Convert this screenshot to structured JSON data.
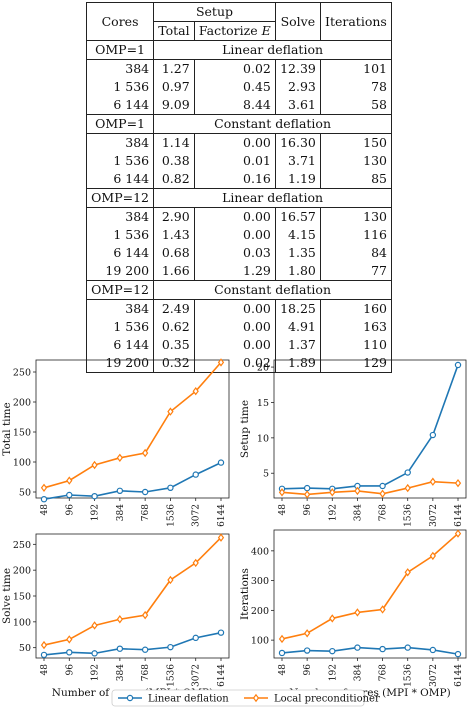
{
  "table": {
    "headers": {
      "cores": "Cores",
      "setup": "Setup",
      "total": "Total",
      "factorize": "Factorize E",
      "solve": "Solve",
      "iterations": "Iterations"
    },
    "sections": [
      {
        "omp": "OMP=1",
        "method": "Linear deflation",
        "rows": [
          [
            "384",
            "1.27",
            "0.02",
            "12.39",
            "101"
          ],
          [
            "1 536",
            "0.97",
            "0.45",
            "2.93",
            "78"
          ],
          [
            "6 144",
            "9.09",
            "8.44",
            "3.61",
            "58"
          ]
        ]
      },
      {
        "omp": "OMP=1",
        "method": "Constant deflation",
        "rows": [
          [
            "384",
            "1.14",
            "0.00",
            "16.30",
            "150"
          ],
          [
            "1 536",
            "0.38",
            "0.01",
            "3.71",
            "130"
          ],
          [
            "6 144",
            "0.82",
            "0.16",
            "1.19",
            "85"
          ]
        ]
      },
      {
        "omp": "OMP=12",
        "method": "Linear deflation",
        "rows": [
          [
            "384",
            "2.90",
            "0.00",
            "16.57",
            "130"
          ],
          [
            "1 536",
            "1.43",
            "0.00",
            "4.15",
            "116"
          ],
          [
            "6 144",
            "0.68",
            "0.03",
            "1.35",
            "84"
          ],
          [
            "19 200",
            "1.66",
            "1.29",
            "1.80",
            "77"
          ]
        ]
      },
      {
        "omp": "OMP=12",
        "method": "Constant deflation",
        "rows": [
          [
            "384",
            "2.49",
            "0.00",
            "18.25",
            "160"
          ],
          [
            "1 536",
            "0.62",
            "0.00",
            "4.91",
            "163"
          ],
          [
            "6 144",
            "0.35",
            "0.00",
            "1.37",
            "110"
          ],
          [
            "19 200",
            "0.32",
            "0.02",
            "1.89",
            "129"
          ]
        ]
      }
    ]
  },
  "chart_data": [
    {
      "type": "line",
      "ylabel": "Total time",
      "xlabel": "",
      "categories": [
        "48",
        "96",
        "192",
        "384",
        "768",
        "1536",
        "3072",
        "6144"
      ],
      "ylim": [
        40,
        270
      ],
      "yticks": [
        50,
        100,
        150,
        200,
        250
      ],
      "series": [
        {
          "name": "Linear deflation",
          "values": [
            38,
            45,
            43,
            52,
            50,
            57,
            79,
            99
          ]
        },
        {
          "name": "Local preconditioner",
          "values": [
            57,
            69,
            95,
            107,
            115,
            184,
            218,
            266
          ]
        }
      ]
    },
    {
      "type": "line",
      "ylabel": "Setup time",
      "xlabel": "",
      "categories": [
        "48",
        "96",
        "192",
        "384",
        "768",
        "1536",
        "3072",
        "6144"
      ],
      "ylim": [
        1.5,
        21
      ],
      "yticks": [
        5,
        10,
        15,
        20
      ],
      "series": [
        {
          "name": "Linear deflation",
          "values": [
            2.8,
            2.9,
            2.8,
            3.2,
            3.2,
            5.1,
            10.4,
            20.3
          ]
        },
        {
          "name": "Local preconditioner",
          "values": [
            2.3,
            2.0,
            2.3,
            2.5,
            2.1,
            2.9,
            3.8,
            3.6
          ]
        }
      ]
    },
    {
      "type": "line",
      "ylabel": "Solve time",
      "xlabel": "Number of cores (MPI * OMP)",
      "categories": [
        "48",
        "96",
        "192",
        "384",
        "768",
        "1536",
        "3072",
        "6144"
      ],
      "ylim": [
        30,
        270
      ],
      "yticks": [
        50,
        100,
        150,
        200,
        250
      ],
      "series": [
        {
          "name": "Linear deflation",
          "values": [
            36,
            41,
            39,
            48,
            46,
            51,
            69,
            79
          ]
        },
        {
          "name": "Local preconditioner",
          "values": [
            55,
            66,
            93,
            105,
            113,
            181,
            214,
            263
          ]
        }
      ]
    },
    {
      "type": "line",
      "ylabel": "Iterations",
      "xlabel": "Number of cores (MPI * OMP)",
      "categories": [
        "48",
        "96",
        "192",
        "384",
        "768",
        "1536",
        "3072",
        "6144"
      ],
      "ylim": [
        40,
        470
      ],
      "yticks": [
        100,
        200,
        300,
        400
      ],
      "series": [
        {
          "name": "Linear deflation",
          "values": [
            57,
            65,
            63,
            75,
            70,
            75,
            67,
            53
          ]
        },
        {
          "name": "Local preconditioner",
          "values": [
            104,
            123,
            173,
            193,
            203,
            328,
            383,
            458
          ]
        }
      ]
    }
  ],
  "legend": {
    "placement": "bottom-center",
    "items": [
      {
        "label": "Linear deflation",
        "color": "#1f77b4",
        "marker": "circle"
      },
      {
        "label": "Local preconditioner",
        "color": "#ff7f0e",
        "marker": "diamond"
      }
    ]
  },
  "colors": {
    "series1": "#1f77b4",
    "series2": "#ff7f0e"
  }
}
